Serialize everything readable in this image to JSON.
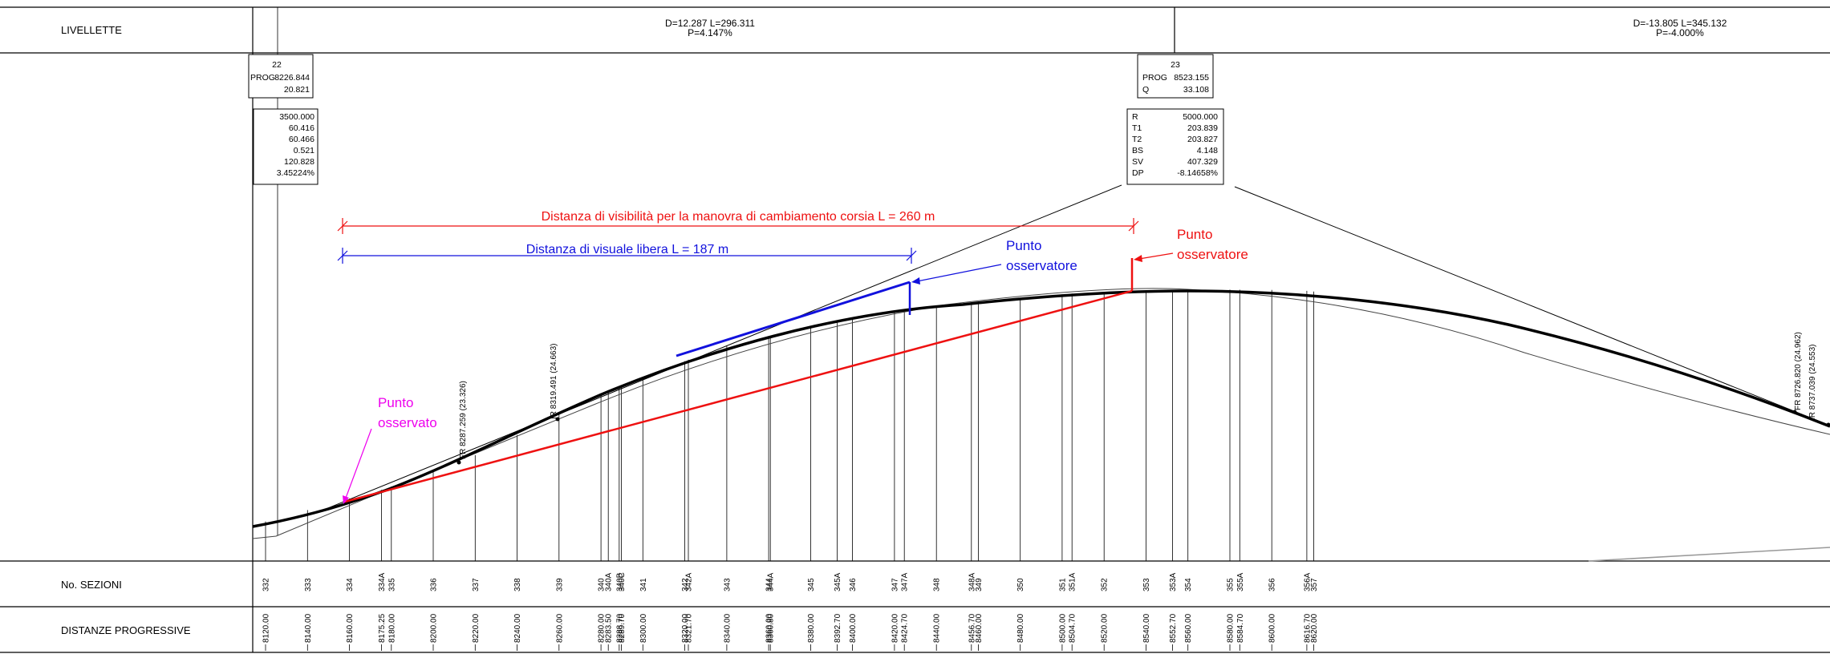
{
  "rows": {
    "livellette": "LIVELLETTE",
    "sezioni": "No. SEZIONI",
    "distanze": "DISTANZE PROGRESSIVE"
  },
  "livellette": [
    {
      "line1": "D=12.287 L=296.311",
      "line2": "P=4.147%"
    },
    {
      "line1": "D=-13.805 L=345.132",
      "line2": "P=-4.000%"
    }
  ],
  "vertex_boxes": [
    {
      "id": "22",
      "rows": [
        {
          "k": "PROG",
          "v": "8226.844"
        },
        {
          "k": "Q",
          "v": "20.821"
        }
      ]
    },
    {
      "id": "23",
      "rows": [
        {
          "k": "PROG",
          "v": "8523.155"
        },
        {
          "k": "Q",
          "v": "33.108"
        }
      ]
    }
  ],
  "curve_boxes": [
    {
      "rows": [
        {
          "k": "",
          "v": "3500.000"
        },
        {
          "k": "",
          "v": "60.416"
        },
        {
          "k": "",
          "v": "60.466"
        },
        {
          "k": "",
          "v": "0.521"
        },
        {
          "k": "",
          "v": "120.828"
        },
        {
          "k": "",
          "v": "3.45224%"
        }
      ]
    },
    {
      "rows": [
        {
          "k": "R",
          "v": "5000.000"
        },
        {
          "k": "T1",
          "v": "203.839"
        },
        {
          "k": "T2",
          "v": "203.827"
        },
        {
          "k": "BS",
          "v": "4.148"
        },
        {
          "k": "SV",
          "v": "407.329"
        },
        {
          "k": "DP",
          "v": "-8.14658%"
        }
      ]
    }
  ],
  "annotations": {
    "red_distance": "Distanza di visibilità per la manovra di cambiamento corsia L = 260 m",
    "blue_distance": "Distanza di visuale libera L = 187 m",
    "blue_observer": [
      "Punto",
      "osservatore"
    ],
    "red_observer": [
      "Punto",
      "osservatore"
    ],
    "observed": [
      "Punto",
      "osservato"
    ]
  },
  "point_labels": [
    "FR  8287.259  (23.326)",
    "IR  8319.491  (24.663)",
    "FR  8726.820  (24.962)",
    "IR  8737.039  (24.553)"
  ],
  "colors": {
    "red": "#ee1111",
    "blue": "#1111dd",
    "magenta": "#ee00ee"
  },
  "sections": [
    {
      "name": "332",
      "prog": "8120.00"
    },
    {
      "name": "333",
      "prog": "8140.00"
    },
    {
      "name": "334",
      "prog": "8160.00"
    },
    {
      "name": "334A",
      "prog": "8175.25"
    },
    {
      "name": "335",
      "prog": "8180.00"
    },
    {
      "name": "336",
      "prog": "8200.00"
    },
    {
      "name": "337",
      "prog": "8220.00"
    },
    {
      "name": "338",
      "prog": "8240.00"
    },
    {
      "name": "339",
      "prog": "8260.00"
    },
    {
      "name": "340",
      "prog": "8280.00"
    },
    {
      "name": "340A",
      "prog": "8283.50"
    },
    {
      "name": "340B",
      "prog": "8288.70"
    },
    {
      "name": "340C",
      "prog": "8289.70"
    },
    {
      "name": "341",
      "prog": "8300.00"
    },
    {
      "name": "342",
      "prog": "8320.00"
    },
    {
      "name": "342A",
      "prog": "8321.70"
    },
    {
      "name": "343",
      "prog": "8340.00"
    },
    {
      "name": "344",
      "prog": "8360.00"
    },
    {
      "name": "344A",
      "prog": "8360.80"
    },
    {
      "name": "345",
      "prog": "8380.00"
    },
    {
      "name": "345A",
      "prog": "8392.70"
    },
    {
      "name": "346",
      "prog": "8400.00"
    },
    {
      "name": "347",
      "prog": "8420.00"
    },
    {
      "name": "347A",
      "prog": "8424.70"
    },
    {
      "name": "348",
      "prog": "8440.00"
    },
    {
      "name": "348A",
      "prog": "8456.70"
    },
    {
      "name": "349",
      "prog": "8460.00"
    },
    {
      "name": "350",
      "prog": "8480.00"
    },
    {
      "name": "351",
      "prog": "8500.00"
    },
    {
      "name": "351A",
      "prog": "8504.70"
    },
    {
      "name": "352",
      "prog": "8520.00"
    },
    {
      "name": "353",
      "prog": "8540.00"
    },
    {
      "name": "353A",
      "prog": "8552.70"
    },
    {
      "name": "354",
      "prog": "8560.00"
    },
    {
      "name": "355",
      "prog": "8580.00"
    },
    {
      "name": "355A",
      "prog": "8584.70"
    },
    {
      "name": "356",
      "prog": "8600.00"
    },
    {
      "name": "356A",
      "prog": "8616.70"
    },
    {
      "name": "357",
      "prog": "8620.00"
    }
  ]
}
